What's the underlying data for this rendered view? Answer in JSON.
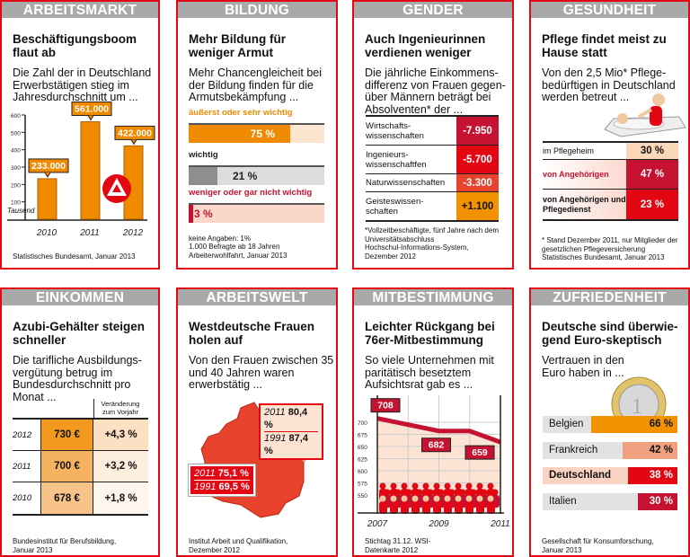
{
  "colors": {
    "red": "#e30613",
    "crimson": "#c41230",
    "orange": "#f08a00",
    "gray": "#a9a9a9",
    "peach": "#fbd9b8"
  },
  "arbeitsmarkt": {
    "header": "ARBEITSMARKT",
    "title": "Beschäftigungsboom flaut ab",
    "subtitle": "Die Zahl der in Deutschland Erwerbstätigen stieg im Jahresdurchschnitt um ...",
    "source": "Statistisches Bundesamt, Januar 2013",
    "logo": "Bundesagentur für Arbeit logo"
  },
  "bildung": {
    "header": "BILDUNG",
    "title": "Mehr Bildung für weniger Armut",
    "subtitle": "Mehr Chancengleicheit bei der Bildung finden für die Armutsbekämpfung ...",
    "items": [
      {
        "label": "äußerst oder sehr wichtig",
        "value": 75,
        "text": "75 %",
        "color": "#f08a00"
      },
      {
        "label": "wichtig",
        "value": 21,
        "text": "21 %",
        "color": "#8e8e8e"
      },
      {
        "label": "weniger oder gar nicht wichtig",
        "value": 3,
        "text": "3 %",
        "color": "#c41230"
      }
    ],
    "notes": [
      "keine Angaben: 1%",
      "1.000 Befragte ab 18 Jahren",
      "Arbeiterwohlfahrt, Januar 2013"
    ]
  },
  "gender": {
    "header": "GENDER",
    "title": "Auch Ingenieurinnen verdienen weniger",
    "subtitle": "Die jährliche Einkommens-differenz von Frauen gegen-über Männern beträgt bei Absolventen* der ...",
    "rows": [
      {
        "label": "Wirtschafts-wissenschaften",
        "value": "-7.950",
        "color": "#c41230"
      },
      {
        "label": "Ingenieurs-wissenschaftfen",
        "value": "-5.700",
        "color": "#e30613"
      },
      {
        "label": "Naturwissenschaften",
        "value": "-3.300",
        "color": "#e8432f"
      },
      {
        "label": "Geisteswissen-schaften",
        "value": "+1.100",
        "color": "#f39200"
      }
    ],
    "notes": [
      "*Vollzeitbeschäftigte, fünf Jahre nach dem Universitätsabschluss",
      "Hochschul-Informations-System, Dezember 2012"
    ]
  },
  "gesundheit": {
    "header": "GESUNDHEIT",
    "title": "Pflege findet meist zu Hause statt",
    "subtitle": "Von den 2,5 Mio* Pflege-bedürftigen in Deutschland werden betreut ...",
    "rows": [
      {
        "label": "im Pflegeheim",
        "value": "30 %"
      },
      {
        "label": "von Angehörigen",
        "value": "47 %"
      },
      {
        "label": "von Angehörigen und Pflegedienst",
        "value": "23 %"
      }
    ],
    "notes": [
      "* Stand Dezember 2011, nur Mitglieder der gesetzlichen Pflegeversicherung",
      "Statistisches Bundesamt, Januar 2013"
    ]
  },
  "einkommen": {
    "header": "EINKOMMEN",
    "title": "Azubi-Gehälter steigen schneller",
    "subtitle": "Die tarifliche Ausbildungs-vergütung betrug im Bundesdurchschnitt pro Monat ...",
    "col_header": "Veränderung zum Vorjahr",
    "rows": [
      {
        "year": "2012",
        "value": "730 €",
        "change": "+4,3 %"
      },
      {
        "year": "2011",
        "value": "700 €",
        "change": "+3,2 %"
      },
      {
        "year": "2010",
        "value": "678 €",
        "change": "+1,8 %"
      }
    ],
    "source": "Bundesinstitut für Berufsbildung, Januar 2013"
  },
  "arbeitswelt": {
    "header": "ARBEITSWELT",
    "title": "Westdeutsche Frauen holen auf",
    "subtitle": "Von den Frauen zwischen 35 und 40 Jahren waren erwerbstätig ...",
    "east": [
      {
        "year": "2011",
        "value": "80,4 %"
      },
      {
        "year": "1991",
        "value": "87,4 %"
      }
    ],
    "west": [
      {
        "year": "2011",
        "value": "75,1 %"
      },
      {
        "year": "1991",
        "value": "69,5 %"
      }
    ],
    "source": "Institut Arbeit und Qualifikation, Dezember 2012"
  },
  "mitbestimmung": {
    "header": "MITBESTIMMUNG",
    "title": "Leichter Rückgang bei 76er-Mitbestimmung",
    "subtitle": "So viele Unternehmen mit paritätisch besetztem Aufsichtsrat gab es ...",
    "source": "Stichtag 31.12. WSI-Datenkarte 2012"
  },
  "zufriedenheit": {
    "header": "ZUFRIEDENHEIT",
    "title": "Deutsche sind überwie-gend Euro-skeptisch",
    "subtitle": "Vertrauen in den Euro haben in ...",
    "rows": [
      {
        "label": "Belgien",
        "value": 66,
        "text": "66 %",
        "color": "#f39200"
      },
      {
        "label": "Frankreich",
        "value": 42,
        "text": "42 %",
        "color": "#f1a07f"
      },
      {
        "label": "Deutschland",
        "value": 38,
        "text": "38 %",
        "color": "#e30613"
      },
      {
        "label": "Italien",
        "value": 30,
        "text": "30 %",
        "color": "#c41230"
      }
    ],
    "source": "Gesellschaft für Konsumforschung, Januar 2013"
  },
  "chart_data": [
    {
      "type": "bar",
      "categories": [
        "2010",
        "2011",
        "2012"
      ],
      "values": [
        233000,
        561000,
        422000
      ],
      "labels": [
        "233.000",
        "561.000",
        "422.000"
      ],
      "ylabel": "Tausend",
      "yticks": [
        "100",
        "200",
        "300",
        "400",
        "500",
        "600"
      ],
      "ylim": [
        0,
        600
      ]
    },
    {
      "type": "line",
      "x": [
        2007,
        2009,
        2010,
        2011
      ],
      "values": [
        708,
        682,
        682,
        659
      ],
      "labels": [
        "708",
        "682",
        "659"
      ],
      "xticks": [
        "2007",
        "2009",
        "2011"
      ],
      "yticks": [
        "550",
        "575",
        "600",
        "625",
        "650",
        "675",
        "700"
      ],
      "ylim": [
        525,
        725
      ]
    }
  ]
}
